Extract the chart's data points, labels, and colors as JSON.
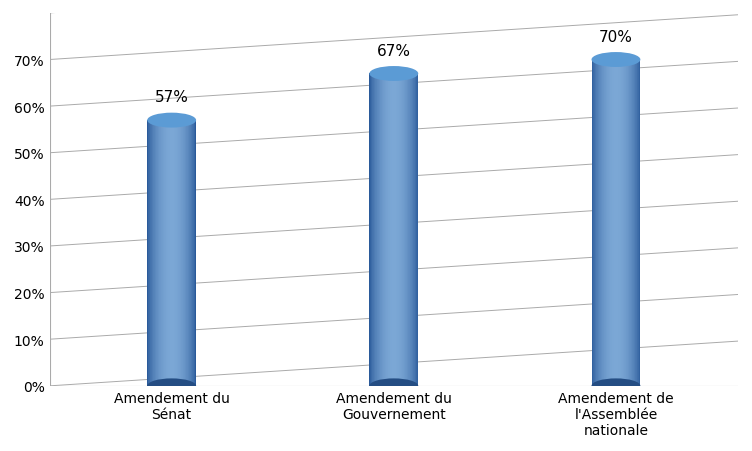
{
  "categories": [
    "Amendement du\nSénat",
    "Amendement du\nGouvernement",
    "Amendement de\nl'Assemblée\nnationale"
  ],
  "values": [
    0.57,
    0.67,
    0.7
  ],
  "labels": [
    "57%",
    "67%",
    "70%"
  ],
  "background_color": "#FFFFFF",
  "plot_bg_color": "#FFFFFF",
  "ylim": [
    0,
    0.8
  ],
  "yticks": [
    0.0,
    0.1,
    0.2,
    0.3,
    0.4,
    0.5,
    0.6,
    0.7
  ],
  "ytick_labels": [
    "0%",
    "10%",
    "20%",
    "30%",
    "40%",
    "50%",
    "60%",
    "70%"
  ],
  "grid_color": "#AAAAAA",
  "label_fontsize": 11,
  "tick_fontsize": 10,
  "bar_width": 0.22,
  "cylinder_dark": "#2A5A9A",
  "cylinder_mid": "#4472C4",
  "cylinder_light": "#7BA7D5",
  "cylinder_top": "#5B9BD5",
  "ellipse_ratio": 0.04,
  "n_strips": 80,
  "figsize": [
    7.52,
    4.52
  ],
  "dpi": 100,
  "xlim_left": -0.55,
  "xlim_right": 2.55
}
